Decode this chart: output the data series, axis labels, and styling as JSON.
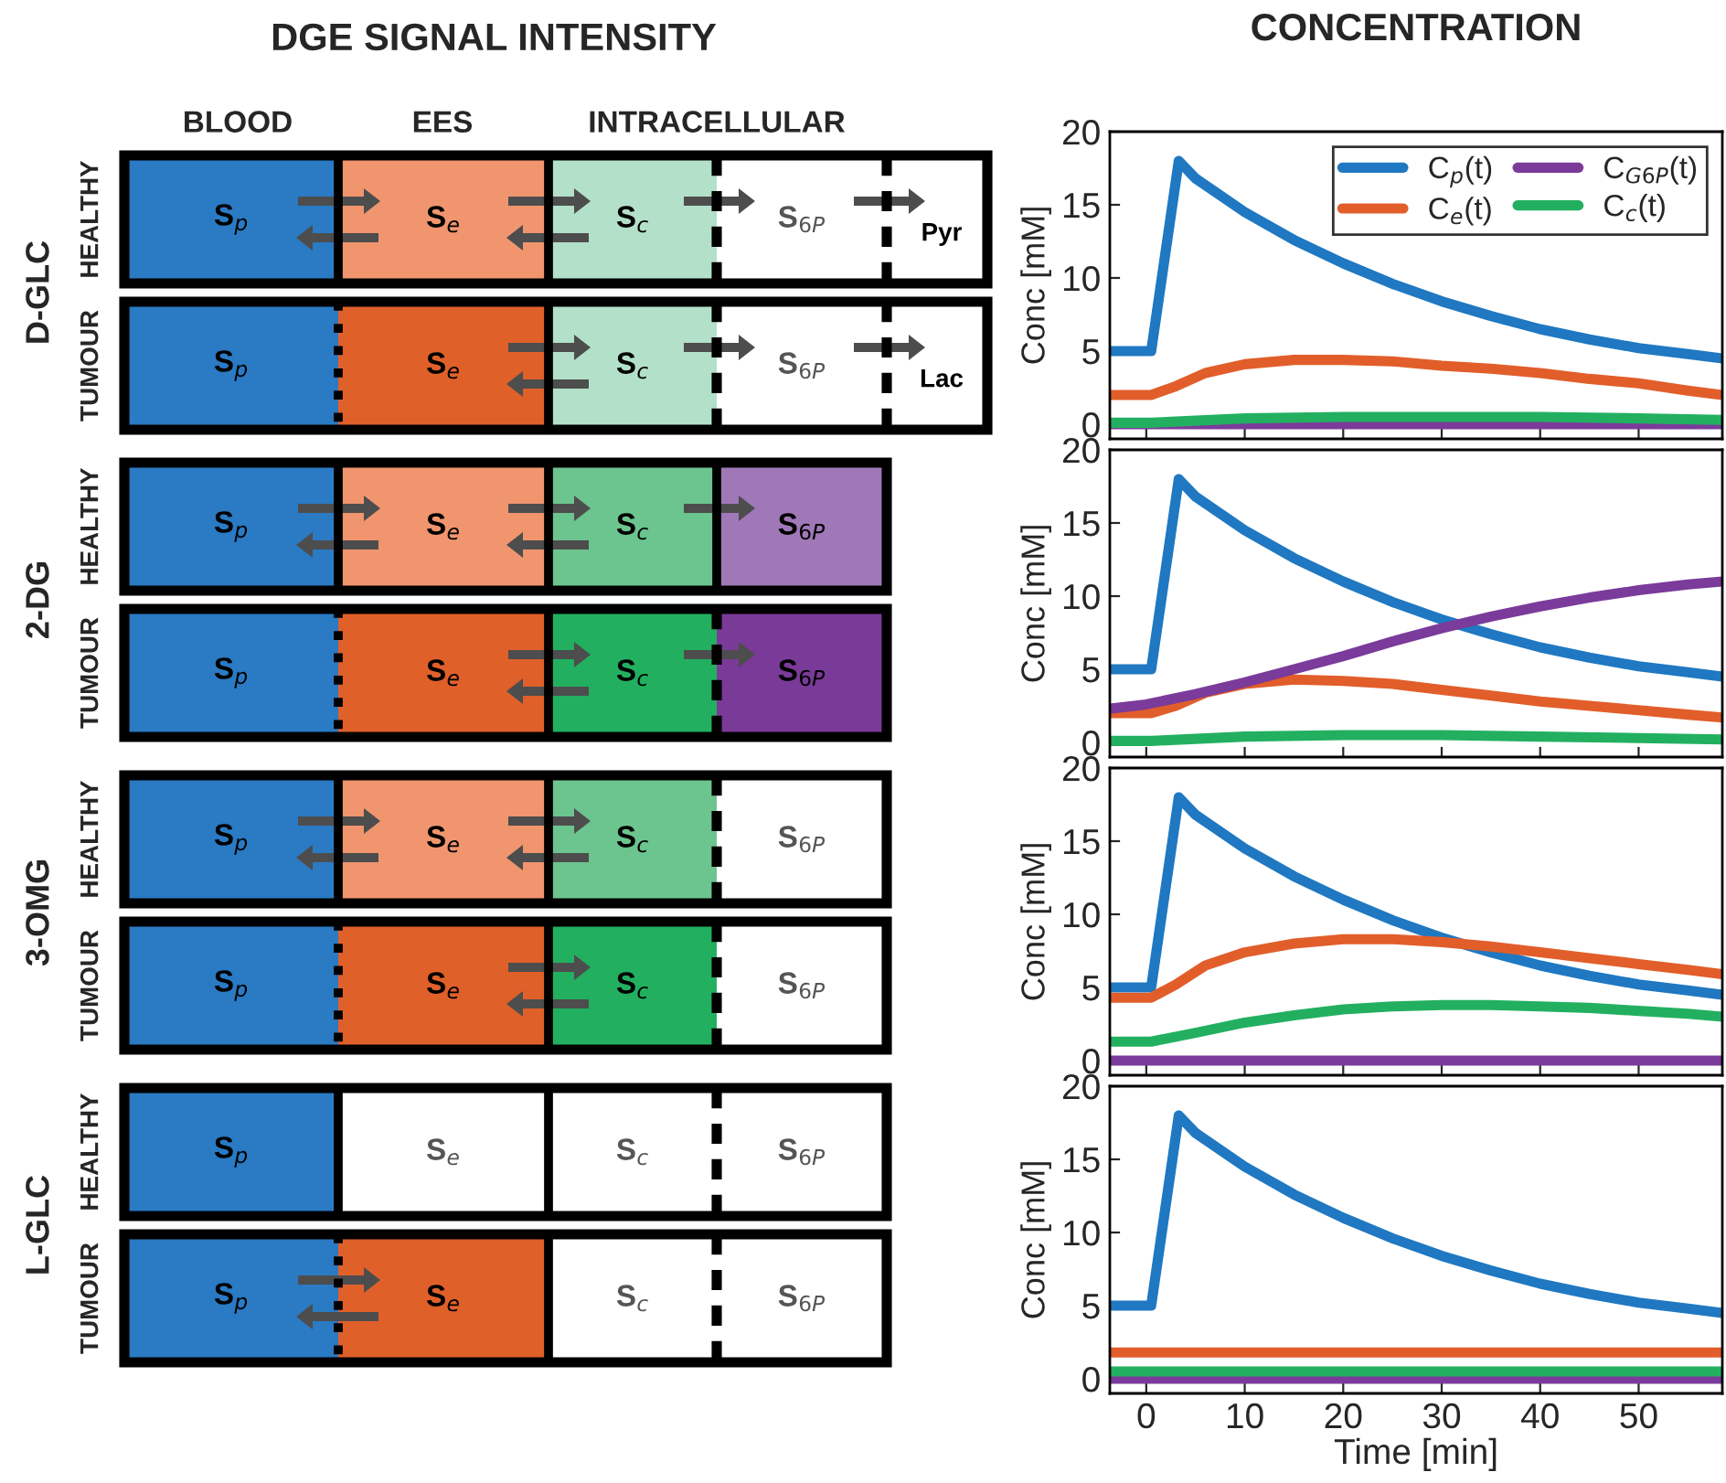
{
  "chart_data": [
    {
      "type": "other",
      "title": "DGE SIGNAL INTENSITY",
      "categories": [
        "BLOOD",
        "EES",
        "INTRACELLULAR"
      ],
      "y_categories": [
        "HEALTHY",
        "TUMOUR",
        "HEALTHY",
        "TUMOUR",
        "HEALTHY",
        "TUMOUR",
        "HEALTHY",
        "TUMOUR"
      ],
      "y2_categories": [
        "D-GLC",
        "2-DG",
        "3-OMG",
        "L-GLC"
      ],
      "cell_labels": [
        [
          "S$_{p}$",
          "S$_{e}$",
          "S$_{c}$",
          "S$_{6P}$",
          "Pyr"
        ],
        [
          "S$_{p}$",
          "S$_{e}$",
          "S$_{c}$",
          "S$_{6P}$",
          "Lac"
        ],
        [
          "S$_{p}$",
          "S$_{e}$",
          "S$_{c}$",
          "S$_{6P}$"
        ],
        [
          "S$_{p}$",
          "S$_{e}$",
          "S$_{c}$",
          "S$_{6P}$"
        ],
        [
          "S$_{p}$",
          "S$_{e}$",
          "S$_{c}$",
          "S$_{6P}$"
        ],
        [
          "S$_{p}$",
          "S$_{e}$",
          "S$_{c}$",
          "S$_{6P}$"
        ],
        [
          "S$_{p}$",
          "S$_{e}$",
          "S$_{c}$",
          "S$_{6P}$"
        ],
        [
          "S$_{p}$",
          "S$_{e}$",
          "S$_{c}$",
          "S$_{6P}$"
        ]
      ],
      "colors": [
        [
          "#2a7ac4",
          "#f0956e",
          "#b3e0c8",
          "#ffffff",
          "#ffffff"
        ],
        [
          "#2a7ac4",
          "#e0602a",
          "#b3e0c8",
          "#ffffff",
          "#ffffff"
        ],
        [
          "#2a7ac4",
          "#f0956e",
          "#6cc48e",
          "#a078b8"
        ],
        [
          "#2a7ac4",
          "#e0602a",
          "#22b060",
          "#7a3a98"
        ],
        [
          "#2a7ac4",
          "#f0956e",
          "#6cc48e",
          "#ffffff"
        ],
        [
          "#2a7ac4",
          "#e0602a",
          "#22b060",
          "#ffffff"
        ],
        [
          "#2a7ac4",
          "#ffffff",
          "#ffffff",
          "#ffffff"
        ],
        [
          "#2a7ac4",
          "#e0602a",
          "#ffffff",
          "#ffffff"
        ]
      ]
    },
    {
      "type": "line",
      "title": "CONCENTRATION",
      "ylabel": "Conc [mM]",
      "xlim": [
        -3.7,
        58.5
      ],
      "ylim": [
        -1,
        20
      ],
      "xticks": [
        0,
        10,
        20,
        30,
        40,
        50
      ],
      "yticks": [
        0,
        5,
        10,
        15,
        20
      ],
      "tick_labels": "y",
      "legend": "top right",
      "grid": false,
      "series": [
        {
          "name": "C$_{p}$(t)",
          "color": "#1f78c1",
          "x": [
            -3.7,
            0.5,
            3.3,
            5,
            10,
            15,
            20,
            25,
            30,
            35,
            40,
            45,
            50,
            55,
            58.5
          ],
          "values": [
            5,
            5,
            18,
            16.8,
            14.5,
            12.6,
            11.0,
            9.6,
            8.4,
            7.4,
            6.5,
            5.8,
            5.2,
            4.8,
            4.5
          ]
        },
        {
          "name": "C$_{e}$(t)",
          "color": "#e15e2a",
          "x": [
            -3.7,
            0.5,
            3,
            6,
            10,
            15,
            20,
            25,
            30,
            35,
            40,
            45,
            50,
            55,
            58.5
          ],
          "values": [
            2,
            2,
            2.6,
            3.5,
            4.1,
            4.4,
            4.4,
            4.3,
            4.0,
            3.8,
            3.5,
            3.1,
            2.8,
            2.3,
            2.0
          ]
        },
        {
          "name": "C$_{G6P}$(t)",
          "color": "#7b3b9a",
          "x": [
            -3.7,
            58.5
          ],
          "values": [
            0,
            0
          ]
        },
        {
          "name": "C$_{c}$(t)",
          "color": "#22b060",
          "x": [
            -3.7,
            0.5,
            10,
            20,
            30,
            40,
            50,
            58.5
          ],
          "values": [
            0.1,
            0.1,
            0.4,
            0.5,
            0.5,
            0.5,
            0.4,
            0.3
          ]
        }
      ]
    },
    {
      "type": "line",
      "ylabel": "Conc [mM]",
      "xlim": [
        -3.7,
        58.5
      ],
      "ylim": [
        -1,
        20
      ],
      "xticks": [
        0,
        10,
        20,
        30,
        40,
        50
      ],
      "yticks": [
        0,
        5,
        10,
        15,
        20
      ],
      "tick_labels": "y",
      "grid": false,
      "series": [
        {
          "color": "#1f78c1",
          "x": [
            -3.7,
            0.5,
            3.3,
            5,
            10,
            15,
            20,
            25,
            30,
            35,
            40,
            45,
            50,
            55,
            58.5
          ],
          "values": [
            5,
            5,
            18,
            16.8,
            14.5,
            12.6,
            11.0,
            9.6,
            8.4,
            7.4,
            6.5,
            5.8,
            5.2,
            4.8,
            4.5
          ]
        },
        {
          "color": "#e15e2a",
          "x": [
            -3.7,
            0.5,
            3,
            6,
            10,
            15,
            20,
            25,
            30,
            35,
            40,
            45,
            50,
            55,
            58.5
          ],
          "values": [
            2,
            2,
            2.5,
            3.4,
            4.0,
            4.3,
            4.2,
            4.0,
            3.6,
            3.2,
            2.8,
            2.5,
            2.2,
            1.9,
            1.7
          ]
        },
        {
          "color": "#7b3b9a",
          "x": [
            -3.7,
            0,
            5,
            10,
            15,
            20,
            25,
            30,
            35,
            40,
            45,
            50,
            55,
            58.5
          ],
          "values": [
            2.3,
            2.6,
            3.3,
            4.1,
            5.0,
            5.9,
            6.9,
            7.8,
            8.6,
            9.3,
            9.9,
            10.4,
            10.8,
            11.0
          ]
        },
        {
          "color": "#22b060",
          "x": [
            -3.7,
            0.5,
            10,
            20,
            30,
            40,
            50,
            58.5
          ],
          "values": [
            0.1,
            0.1,
            0.4,
            0.5,
            0.5,
            0.4,
            0.3,
            0.2
          ]
        }
      ]
    },
    {
      "type": "line",
      "ylabel": "Conc [mM]",
      "xlim": [
        -3.7,
        58.5
      ],
      "ylim": [
        -1,
        20
      ],
      "xticks": [
        0,
        10,
        20,
        30,
        40,
        50
      ],
      "yticks": [
        0,
        5,
        10,
        15,
        20
      ],
      "tick_labels": "y",
      "grid": false,
      "series": [
        {
          "color": "#1f78c1",
          "x": [
            -3.7,
            0.5,
            3.3,
            5,
            10,
            15,
            20,
            25,
            30,
            35,
            40,
            45,
            50,
            55,
            58.5
          ],
          "values": [
            5,
            5,
            18,
            16.8,
            14.5,
            12.6,
            11.0,
            9.6,
            8.4,
            7.4,
            6.5,
            5.8,
            5.2,
            4.8,
            4.5
          ]
        },
        {
          "color": "#e15e2a",
          "x": [
            -3.7,
            0.5,
            3,
            6,
            10,
            15,
            20,
            25,
            30,
            35,
            40,
            45,
            50,
            55,
            58.5
          ],
          "values": [
            4.3,
            4.3,
            5.2,
            6.5,
            7.4,
            8.0,
            8.3,
            8.3,
            8.1,
            7.8,
            7.4,
            7.0,
            6.6,
            6.2,
            5.9
          ]
        },
        {
          "color": "#7b3b9a",
          "x": [
            -3.7,
            58.5
          ],
          "values": [
            0,
            0
          ]
        },
        {
          "color": "#22b060",
          "x": [
            -3.7,
            0.5,
            5,
            10,
            15,
            20,
            25,
            30,
            35,
            40,
            45,
            50,
            55,
            58.5
          ],
          "values": [
            1.3,
            1.3,
            1.9,
            2.6,
            3.1,
            3.5,
            3.7,
            3.8,
            3.8,
            3.7,
            3.6,
            3.4,
            3.2,
            3.0
          ]
        }
      ]
    },
    {
      "type": "line",
      "ylabel": "Conc [mM]",
      "xlabel": "Time [min]",
      "xlim": [
        -3.7,
        58.5
      ],
      "ylim": [
        -1,
        20
      ],
      "xticks": [
        0,
        10,
        20,
        30,
        40,
        50
      ],
      "yticks": [
        0,
        5,
        10,
        15,
        20
      ],
      "grid": false,
      "series": [
        {
          "color": "#1f78c1",
          "x": [
            -3.7,
            0.5,
            3.3,
            5,
            10,
            15,
            20,
            25,
            30,
            35,
            40,
            45,
            50,
            55,
            58.5
          ],
          "values": [
            5,
            5,
            18,
            16.8,
            14.5,
            12.6,
            11.0,
            9.6,
            8.4,
            7.4,
            6.5,
            5.8,
            5.2,
            4.8,
            4.5
          ]
        },
        {
          "color": "#e15e2a",
          "x": [
            -3.7,
            58.5
          ],
          "values": [
            1.8,
            1.8
          ]
        },
        {
          "color": "#7b3b9a",
          "x": [
            -3.7,
            58.5
          ],
          "values": [
            0,
            0
          ]
        },
        {
          "color": "#22b060",
          "x": [
            -3.7,
            58.5
          ],
          "values": [
            0.5,
            0.5
          ]
        }
      ]
    }
  ]
}
